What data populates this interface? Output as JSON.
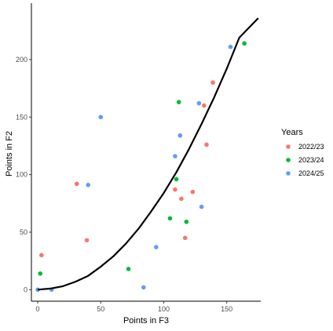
{
  "chart_data": {
    "type": "scatter",
    "xlabel": "Points in F3",
    "ylabel": "Points in F2",
    "xlim": [
      -5,
      177
    ],
    "ylim": [
      -10,
      249
    ],
    "xticks": [
      0,
      50,
      100,
      150
    ],
    "yticks": [
      0,
      50,
      100,
      150,
      200
    ],
    "grid": false,
    "legend": {
      "title": "Years",
      "position": "right"
    },
    "series": [
      {
        "name": "2022/23",
        "color": "#F8766D",
        "points": [
          {
            "x": 3,
            "y": 30
          },
          {
            "x": 31,
            "y": 92
          },
          {
            "x": 39,
            "y": 43
          },
          {
            "x": 109,
            "y": 87
          },
          {
            "x": 114,
            "y": 79
          },
          {
            "x": 117,
            "y": 45
          },
          {
            "x": 123,
            "y": 85
          },
          {
            "x": 132,
            "y": 160
          },
          {
            "x": 134,
            "y": 126
          },
          {
            "x": 139,
            "y": 180
          }
        ]
      },
      {
        "name": "2023/24",
        "color": "#00BA38",
        "points": [
          {
            "x": 2,
            "y": 14
          },
          {
            "x": 72,
            "y": 18
          },
          {
            "x": 105,
            "y": 62
          },
          {
            "x": 110,
            "y": 96
          },
          {
            "x": 112,
            "y": 163
          },
          {
            "x": 118,
            "y": 59
          },
          {
            "x": 164,
            "y": 214
          }
        ]
      },
      {
        "name": "2024/25",
        "color": "#619CFF",
        "points": [
          {
            "x": 0,
            "y": 0
          },
          {
            "x": 11,
            "y": 0
          },
          {
            "x": 40,
            "y": 91
          },
          {
            "x": 50,
            "y": 150
          },
          {
            "x": 84,
            "y": 2
          },
          {
            "x": 94,
            "y": 37
          },
          {
            "x": 109,
            "y": 116
          },
          {
            "x": 113,
            "y": 134
          },
          {
            "x": 128,
            "y": 162
          },
          {
            "x": 130,
            "y": 72
          },
          {
            "x": 153,
            "y": 211
          }
        ]
      }
    ],
    "fit_line": {
      "color": "#000000",
      "points": [
        {
          "x": 0,
          "y": 0
        },
        {
          "x": 10,
          "y": 1
        },
        {
          "x": 20,
          "y": 3
        },
        {
          "x": 30,
          "y": 7
        },
        {
          "x": 40,
          "y": 12
        },
        {
          "x": 50,
          "y": 20
        },
        {
          "x": 60,
          "y": 29
        },
        {
          "x": 70,
          "y": 40
        },
        {
          "x": 80,
          "y": 53
        },
        {
          "x": 90,
          "y": 68
        },
        {
          "x": 100,
          "y": 84
        },
        {
          "x": 110,
          "y": 102
        },
        {
          "x": 120,
          "y": 122
        },
        {
          "x": 130,
          "y": 144
        },
        {
          "x": 140,
          "y": 167
        },
        {
          "x": 150,
          "y": 192
        },
        {
          "x": 160,
          "y": 219
        },
        {
          "x": 175,
          "y": 236
        }
      ]
    }
  }
}
